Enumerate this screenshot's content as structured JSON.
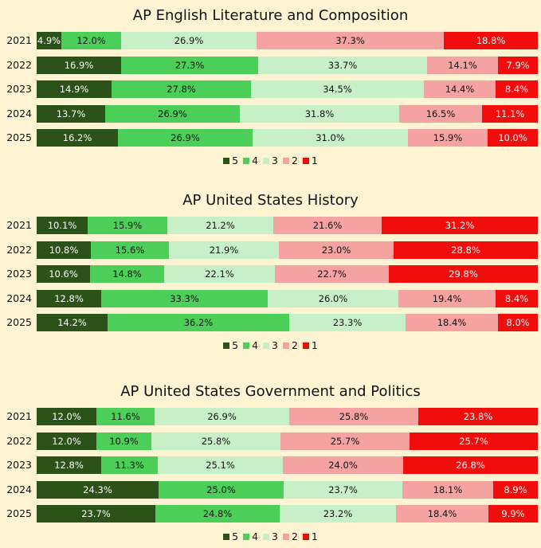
{
  "colors": {
    "5": "#2b5219",
    "4": "#4ccf58",
    "3": "#c8f0c8",
    "2": "#f4a3a0",
    "1": "#f20d0d"
  },
  "text_colors": {
    "5": "#ffffff",
    "4": "#111111",
    "3": "#111111",
    "2": "#111111",
    "1": "#ffffff"
  },
  "legend": [
    "5",
    "4",
    "3",
    "2",
    "1"
  ],
  "chart_data": [
    {
      "type": "bar",
      "stacked": true,
      "orientation": "horizontal",
      "title": "AP English Literature and Composition",
      "categories": [
        "2021",
        "2022",
        "2023",
        "2024",
        "2025"
      ],
      "series": [
        {
          "name": "5",
          "values": [
            4.9,
            16.9,
            14.9,
            13.7,
            16.2
          ],
          "labels": [
            "4.9%",
            "16.9%",
            "14.9%",
            "13.7%",
            "16.2%"
          ]
        },
        {
          "name": "4",
          "values": [
            12.0,
            27.3,
            27.8,
            26.9,
            26.9
          ],
          "labels": [
            "12.0%",
            "27.3%",
            "27.8%",
            "26.9%",
            "26.9%"
          ]
        },
        {
          "name": "3",
          "values": [
            26.9,
            33.7,
            34.5,
            31.8,
            31.0
          ],
          "labels": [
            "26.9%",
            "33.7%",
            "34.5%",
            "31.8%",
            "31.0%"
          ]
        },
        {
          "name": "2",
          "values": [
            37.3,
            14.1,
            14.4,
            16.5,
            15.9
          ],
          "labels": [
            "37.3%",
            "14.1%",
            "14.4%",
            "16.5%",
            "15.9%"
          ]
        },
        {
          "name": "1",
          "values": [
            18.8,
            7.9,
            8.4,
            11.1,
            10.0
          ],
          "labels": [
            "18.8%",
            "7.9%",
            "8.4%",
            "11.1%",
            "10.0%"
          ]
        }
      ]
    },
    {
      "type": "bar",
      "stacked": true,
      "orientation": "horizontal",
      "title": "AP United States History",
      "categories": [
        "2021",
        "2022",
        "2023",
        "2024",
        "2025"
      ],
      "series": [
        {
          "name": "5",
          "values": [
            10.1,
            10.8,
            10.6,
            12.8,
            14.2
          ],
          "labels": [
            "10.1%",
            "10.8%",
            "10.6%",
            "12.8%",
            "14.2%"
          ]
        },
        {
          "name": "4",
          "values": [
            15.9,
            15.6,
            14.8,
            33.3,
            36.2
          ],
          "labels": [
            "15.9%",
            "15.6%",
            "14.8%",
            "33.3%",
            "36.2%"
          ]
        },
        {
          "name": "3",
          "values": [
            21.2,
            21.9,
            22.1,
            26.0,
            23.3
          ],
          "labels": [
            "21.2%",
            "21.9%",
            "22.1%",
            "26.0%",
            "23.3%"
          ]
        },
        {
          "name": "2",
          "values": [
            21.6,
            23.0,
            22.7,
            19.4,
            18.4
          ],
          "labels": [
            "21.6%",
            "23.0%",
            "22.7%",
            "19.4%",
            "18.4%"
          ]
        },
        {
          "name": "1",
          "values": [
            31.2,
            28.8,
            29.8,
            8.4,
            8.0
          ],
          "labels": [
            "31.2%",
            "28.8%",
            "29.8%",
            "8.4%",
            "8.0%"
          ]
        }
      ]
    },
    {
      "type": "bar",
      "stacked": true,
      "orientation": "horizontal",
      "title": "AP United States Government and Politics",
      "categories": [
        "2021",
        "2022",
        "2023",
        "2024",
        "2025"
      ],
      "series": [
        {
          "name": "5",
          "values": [
            12.0,
            12.0,
            12.8,
            24.3,
            23.7
          ],
          "labels": [
            "12.0%",
            "12.0%",
            "12.8%",
            "24.3%",
            "23.7%"
          ]
        },
        {
          "name": "4",
          "values": [
            11.6,
            10.9,
            11.3,
            25.0,
            24.8
          ],
          "labels": [
            "11.6%",
            "10.9%",
            "11.3%",
            "25.0%",
            "24.8%"
          ]
        },
        {
          "name": "3",
          "values": [
            26.9,
            25.8,
            25.1,
            23.7,
            23.2
          ],
          "labels": [
            "26.9%",
            "25.8%",
            "25.1%",
            "23.7%",
            "23.2%"
          ]
        },
        {
          "name": "2",
          "values": [
            25.8,
            25.7,
            24.0,
            18.1,
            18.4
          ],
          "labels": [
            "25.8%",
            "25.7%",
            "24.0%",
            "18.1%",
            "18.4%"
          ]
        },
        {
          "name": "1",
          "values": [
            23.8,
            25.7,
            26.8,
            8.9,
            9.9
          ],
          "labels": [
            "23.8%",
            "25.7%",
            "26.8%",
            "8.9%",
            "9.9%"
          ]
        }
      ]
    }
  ]
}
